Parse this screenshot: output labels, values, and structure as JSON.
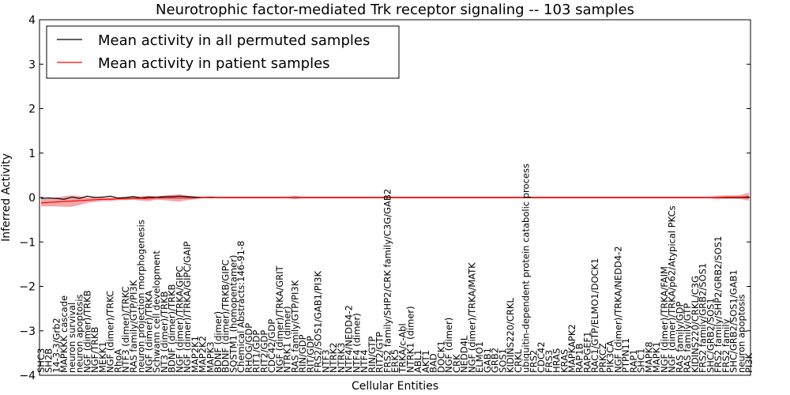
{
  "chart_data": {
    "type": "line",
    "title": "Neurotrophic factor-mediated Trk receptor signaling -- 103 samples",
    "xlabel": "Cellular Entities",
    "ylabel": "Inferred Activity",
    "ylim": [
      -4,
      4
    ],
    "yticks": [
      -4,
      -3,
      -2,
      -1,
      0,
      1,
      2,
      3,
      4
    ],
    "ytick_labels": [
      "−4",
      "−3",
      "−2",
      "−1",
      "0",
      "1",
      "2",
      "3",
      "4"
    ],
    "legend_position": "top-left",
    "categories": [
      "SHC3",
      "SH2B",
      "14-3-3/Grb2",
      "MAPKKK cascade",
      "neuron survival",
      "neuron apoptosis",
      "NGF (dimer)/TRKB",
      "NGF/TRKB",
      "MEKK1",
      "NGF (dimer)/TRKC",
      "RhoA",
      "NTF3 (dimer)/TRKC",
      "RAS family/GTP/PI3K",
      "neuron projection morphogenesis",
      "NGF (dimer)/TRKA",
      "Schwann cell development",
      "NT3 (dimer)/TRKB",
      "BDNF (dimer)/TRKB",
      "NGF (dimer)/TRKA/GIPC",
      "NGF (dimer)/TRKA/GIPC/GAIP",
      "MAP2K1",
      "MAP2K2",
      "MAPK3",
      "BDNF (dimer)",
      "BDNF (dimer)/TRKB/GIPC",
      "SQSTM1 (homopentamer)",
      "Chemical Abstracts:146-91-8",
      "RHOG/GDP",
      "RIT1/GDP",
      "RIT2/GDP",
      "CDC42/GDP",
      "NGF (dimer)/TRKA/GRIT",
      "NTRK1 (dimer)",
      "RAS family/GTP/PI3K",
      "RIN/GDP",
      "RIT/GDP",
      "FRS2/SOS1/GAB1/PI3K",
      "NTF3",
      "NTRK2",
      "NTRK3",
      "NTF4/NEDD4-2",
      "NTF4 (dimer)",
      "NTF4",
      "RIN/GTP",
      "RIT2/GTP",
      "FRS2 family/SHP2/CRK family/C3G/GAB2",
      "ERK5",
      "TRKA/c-Abl",
      "NTRK1 (dimer)",
      "ABL1",
      "AKT1",
      "BAD",
      "DOCK1",
      "NGF (dimer)",
      "CRK",
      "NEDD4L",
      "NGF (dimer)/TRKA/MATK",
      "ELMO1",
      "GAB1",
      "GRB2",
      "SOS1",
      "KIDINS220/CRKL",
      "CRKL",
      "ubiquitin-dependent protein catabolic process",
      "FRS2",
      "CDC42",
      "FRS3",
      "HRAS",
      "KRAS",
      "MAPKAPK2",
      "RAP1B",
      "RAPGEF1",
      "RAC1/GTP/ELMO1/DOCK1",
      "PRKCZ",
      "PIK3CA",
      "NGF (dimer)/TRKA/NEDD4-2",
      "PTPN11",
      "RAP1",
      "SHC1",
      "MAPK8",
      "MAPK1",
      "NGF (dimer)/TRKA/FAIM",
      "NGF (dimer)/TRKA/p62/Atypical PKCs",
      "RAS family/GDP",
      "RAS family/GTP",
      "KIDINS220/CRKL/C3G",
      "FRS2 family/GRB2/SOS1",
      "SHC/GRB2/SOS1",
      "FRS2 family/SHP2/GRB2/SOS1",
      "FRS2 family",
      "SHC/GRB2/SOS1/GAB1",
      "neuron apoptosis",
      "PI3K"
    ],
    "series": [
      {
        "name": "Mean activity in all permuted samples",
        "color": "#000000",
        "values": [
          -0.02,
          -0.01,
          -0.02,
          -0.04,
          0.01,
          -0.02,
          0.03,
          0.0,
          0.01,
          0.03,
          -0.01,
          0.0,
          0.02,
          -0.01,
          0.01,
          0.0,
          0.02,
          0.02,
          0.03,
          0.02,
          0.01,
          0.0,
          0.01,
          0.0,
          0.0,
          0.0,
          0.0,
          0.0,
          0.0,
          0.0,
          0.0,
          0.0,
          0.0,
          0.0,
          0.0,
          0.0,
          0.0,
          0.0,
          0.0,
          0.0,
          0.0,
          0.0,
          0.0,
          0.0,
          0.0,
          0.0,
          0.0,
          0.0,
          0.0,
          0.0,
          0.0,
          0.0,
          0.0,
          0.0,
          0.0,
          0.0,
          0.0,
          0.0,
          0.0,
          0.0,
          0.0,
          0.0,
          0.0,
          0.0,
          0.0,
          0.0,
          0.0,
          0.0,
          0.0,
          0.0,
          0.0,
          0.0,
          0.0,
          0.0,
          0.0,
          0.0,
          0.0,
          0.0,
          0.0,
          0.0,
          0.0,
          0.0,
          0.0,
          0.0,
          0.0,
          0.0,
          0.0,
          0.0,
          0.0,
          0.0,
          0.0,
          0.0,
          0.0
        ]
      },
      {
        "name": "Mean activity in patient samples",
        "color": "#ff0000",
        "band_color": "#f4a6a6",
        "values": [
          -0.12,
          -0.11,
          -0.1,
          -0.09,
          -0.08,
          -0.07,
          -0.06,
          -0.05,
          -0.04,
          -0.04,
          -0.03,
          -0.03,
          -0.02,
          -0.02,
          -0.02,
          -0.01,
          -0.01,
          -0.01,
          -0.01,
          -0.01,
          -0.01,
          0.0,
          0.0,
          0.0,
          0.0,
          0.0,
          0.0,
          0.0,
          0.0,
          0.0,
          0.0,
          0.0,
          0.0,
          0.0,
          0.0,
          0.0,
          0.0,
          0.0,
          0.0,
          0.0,
          0.0,
          0.0,
          0.0,
          0.0,
          0.0,
          0.0,
          0.0,
          0.0,
          0.0,
          0.0,
          0.0,
          0.0,
          0.0,
          0.0,
          0.0,
          0.0,
          0.0,
          0.0,
          0.0,
          0.0,
          0.0,
          0.0,
          0.0,
          0.0,
          0.0,
          0.0,
          0.0,
          0.0,
          0.0,
          0.0,
          0.0,
          0.0,
          0.0,
          0.0,
          0.0,
          0.0,
          0.0,
          0.0,
          0.0,
          0.0,
          0.0,
          0.0,
          0.0,
          0.0,
          0.0,
          0.0,
          0.0,
          0.0,
          0.0,
          0.01,
          0.01,
          0.01,
          0.02
        ],
        "band_halfwidth": [
          0.08,
          0.09,
          0.1,
          0.12,
          0.13,
          0.1,
          0.06,
          0.05,
          0.04,
          0.04,
          0.03,
          0.03,
          0.03,
          0.05,
          0.06,
          0.04,
          0.05,
          0.07,
          0.08,
          0.05,
          0.03,
          0.02,
          0.02,
          0.02,
          0.02,
          0.02,
          0.02,
          0.02,
          0.02,
          0.02,
          0.02,
          0.02,
          0.02,
          0.04,
          0.02,
          0.02,
          0.02,
          0.02,
          0.02,
          0.02,
          0.02,
          0.02,
          0.02,
          0.02,
          0.02,
          0.02,
          0.02,
          0.02,
          0.02,
          0.02,
          0.02,
          0.02,
          0.02,
          0.02,
          0.02,
          0.02,
          0.02,
          0.02,
          0.02,
          0.02,
          0.02,
          0.02,
          0.02,
          0.02,
          0.02,
          0.02,
          0.02,
          0.02,
          0.02,
          0.02,
          0.02,
          0.02,
          0.02,
          0.02,
          0.02,
          0.02,
          0.02,
          0.02,
          0.02,
          0.02,
          0.02,
          0.02,
          0.02,
          0.02,
          0.02,
          0.02,
          0.02,
          0.02,
          0.04,
          0.04,
          0.04,
          0.05,
          0.09
        ]
      }
    ]
  }
}
